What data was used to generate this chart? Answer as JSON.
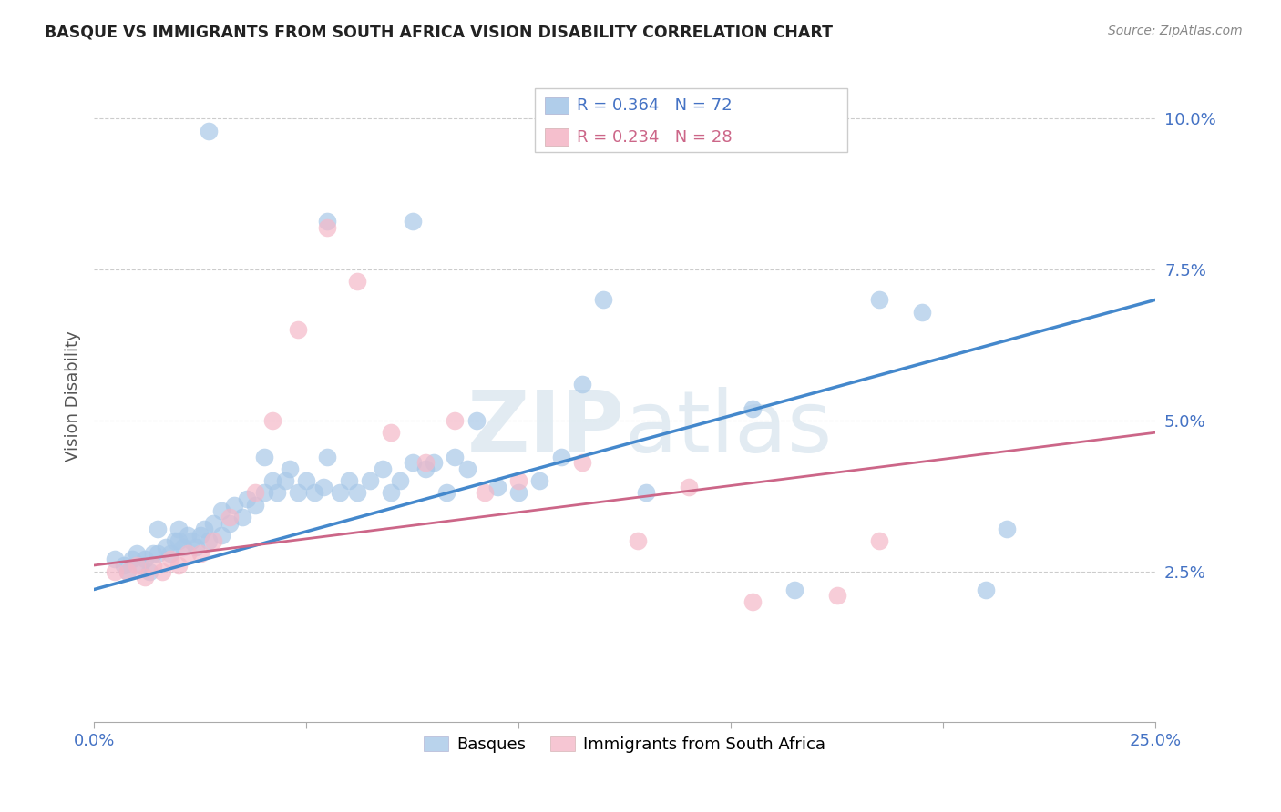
{
  "title": "BASQUE VS IMMIGRANTS FROM SOUTH AFRICA VISION DISABILITY CORRELATION CHART",
  "source": "Source: ZipAtlas.com",
  "ylabel": "Vision Disability",
  "ytick_labels": [
    "2.5%",
    "5.0%",
    "7.5%",
    "10.0%"
  ],
  "ytick_values": [
    0.025,
    0.05,
    0.075,
    0.1
  ],
  "xlim": [
    0.0,
    0.25
  ],
  "ylim": [
    0.0,
    0.108
  ],
  "legend_blue_r": "R = 0.364",
  "legend_blue_n": "N = 72",
  "legend_pink_r": "R = 0.234",
  "legend_pink_n": "N = 28",
  "blue_color": "#a8c8e8",
  "pink_color": "#f4b8c8",
  "line_blue": "#4488cc",
  "line_pink": "#cc6688",
  "blue_scatter_x": [
    0.027,
    0.055,
    0.075,
    0.115,
    0.12,
    0.005,
    0.007,
    0.008,
    0.009,
    0.01,
    0.011,
    0.012,
    0.013,
    0.014,
    0.015,
    0.015,
    0.017,
    0.018,
    0.019,
    0.02,
    0.02,
    0.021,
    0.022,
    0.023,
    0.024,
    0.025,
    0.026,
    0.027,
    0.028,
    0.03,
    0.03,
    0.032,
    0.033,
    0.035,
    0.036,
    0.038,
    0.04,
    0.04,
    0.042,
    0.043,
    0.045,
    0.046,
    0.048,
    0.05,
    0.052,
    0.054,
    0.055,
    0.058,
    0.06,
    0.062,
    0.065,
    0.068,
    0.07,
    0.072,
    0.075,
    0.078,
    0.08,
    0.083,
    0.085,
    0.088,
    0.09,
    0.095,
    0.1,
    0.105,
    0.11,
    0.13,
    0.155,
    0.165,
    0.185,
    0.195,
    0.21,
    0.215
  ],
  "blue_scatter_y": [
    0.098,
    0.083,
    0.083,
    0.056,
    0.07,
    0.027,
    0.026,
    0.025,
    0.027,
    0.028,
    0.026,
    0.027,
    0.025,
    0.028,
    0.028,
    0.032,
    0.029,
    0.028,
    0.03,
    0.03,
    0.032,
    0.029,
    0.031,
    0.03,
    0.029,
    0.031,
    0.032,
    0.03,
    0.033,
    0.031,
    0.035,
    0.033,
    0.036,
    0.034,
    0.037,
    0.036,
    0.038,
    0.044,
    0.04,
    0.038,
    0.04,
    0.042,
    0.038,
    0.04,
    0.038,
    0.039,
    0.044,
    0.038,
    0.04,
    0.038,
    0.04,
    0.042,
    0.038,
    0.04,
    0.043,
    0.042,
    0.043,
    0.038,
    0.044,
    0.042,
    0.05,
    0.039,
    0.038,
    0.04,
    0.044,
    0.038,
    0.052,
    0.022,
    0.07,
    0.068,
    0.022,
    0.032
  ],
  "pink_scatter_x": [
    0.005,
    0.008,
    0.01,
    0.012,
    0.014,
    0.016,
    0.018,
    0.02,
    0.022,
    0.025,
    0.028,
    0.032,
    0.038,
    0.042,
    0.048,
    0.055,
    0.062,
    0.07,
    0.078,
    0.085,
    0.092,
    0.1,
    0.115,
    0.128,
    0.14,
    0.155,
    0.175,
    0.185
  ],
  "pink_scatter_y": [
    0.025,
    0.025,
    0.026,
    0.024,
    0.026,
    0.025,
    0.027,
    0.026,
    0.028,
    0.028,
    0.03,
    0.034,
    0.038,
    0.05,
    0.065,
    0.082,
    0.073,
    0.048,
    0.043,
    0.05,
    0.038,
    0.04,
    0.043,
    0.03,
    0.039,
    0.02,
    0.021,
    0.03
  ],
  "blue_line_x": [
    0.0,
    0.25
  ],
  "blue_line_y": [
    0.022,
    0.07
  ],
  "pink_line_x": [
    0.0,
    0.25
  ],
  "pink_line_y": [
    0.026,
    0.048
  ]
}
